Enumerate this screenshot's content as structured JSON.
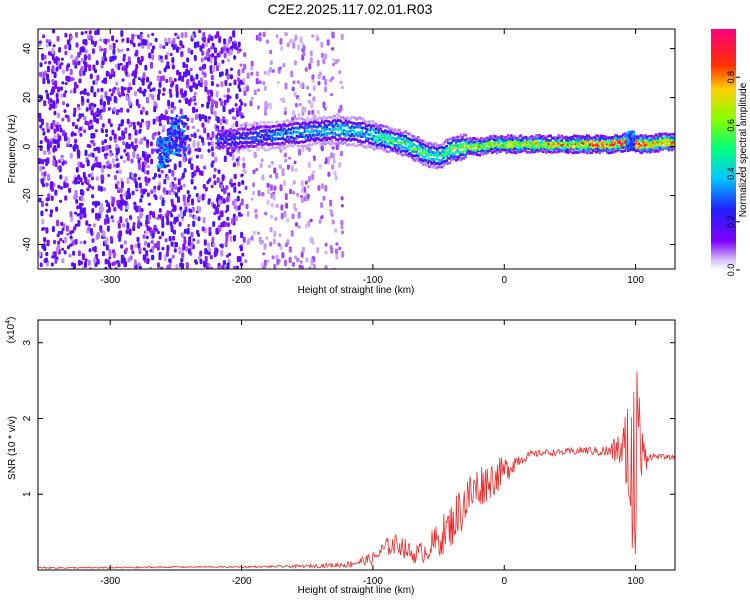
{
  "title": "C2E2.2025.117.02.01.R03",
  "chart_data": [
    {
      "type": "heatmap",
      "xlabel": "Height of straight line (km)",
      "ylabel": "Frequency (Hz)",
      "xlim": [
        -355,
        130
      ],
      "ylim": [
        -50,
        48
      ],
      "xticks": [
        -300,
        -200,
        -100,
        0,
        100
      ],
      "yticks": [
        -40,
        -20,
        0,
        20,
        40
      ],
      "colorbar": {
        "label": "Normalized spectral amplitude",
        "range": [
          0,
          1
        ],
        "ticks": [
          "0.0",
          "0.2",
          "0.4",
          "0.6",
          "0.8"
        ],
        "tick_values": [
          0,
          0.2,
          0.4,
          0.6,
          0.8
        ],
        "colormap": "rainbow (white-violet-blue-cyan-green-yellow-red-magenta)"
      },
      "ridge": {
        "description": "main spectral ridge frequency (Hz) vs height (km)",
        "x": [
          -210,
          -190,
          -170,
          -150,
          -130,
          -110,
          -90,
          -75,
          -60,
          -50,
          -40,
          -30,
          -20,
          -10,
          0,
          20,
          40,
          60,
          80,
          95,
          100,
          110,
          120,
          130
        ],
        "y": [
          3,
          4,
          5,
          6,
          7,
          6,
          3,
          1,
          -3,
          -4,
          -1,
          0,
          0,
          1,
          1,
          1,
          1,
          1,
          1,
          2,
          1,
          1,
          2,
          2
        ],
        "amplitude": [
          0.3,
          0.35,
          0.4,
          0.45,
          0.5,
          0.5,
          0.5,
          0.55,
          0.5,
          0.5,
          0.6,
          0.65,
          0.7,
          0.7,
          0.7,
          0.75,
          0.75,
          0.8,
          0.85,
          0.9,
          0.9,
          0.85,
          0.85,
          0.85
        ]
      },
      "noise_region_x": [
        -355,
        -130
      ]
    },
    {
      "type": "line",
      "xlabel": "Height of straight line (km)",
      "ylabel": "SNR (10 * v/v)",
      "multiplier": "(x10⁴)",
      "multiplier_base": "(x10",
      "multiplier_exp": "4",
      "xlim": [
        -355,
        130
      ],
      "ylim": [
        0,
        3.3
      ],
      "xticks": [
        -300,
        -200,
        -100,
        0,
        100
      ],
      "yticks": [
        1,
        2,
        3
      ],
      "color": "#e8302f",
      "series": [
        {
          "x": [
            -355,
            -300,
            -250,
            -200,
            -150,
            -120,
            -100,
            -90,
            -80,
            -70,
            -60,
            -50,
            -40,
            -30,
            -20,
            -10,
            0,
            10,
            20,
            30,
            40,
            50,
            60,
            70,
            80,
            90,
            95,
            100,
            105,
            110,
            120,
            130
          ],
          "y": [
            0.03,
            0.03,
            0.04,
            0.04,
            0.05,
            0.07,
            0.15,
            0.3,
            0.35,
            0.2,
            0.25,
            0.4,
            0.6,
            0.9,
            1.1,
            1.2,
            1.3,
            1.45,
            1.52,
            1.55,
            1.55,
            1.56,
            1.58,
            1.57,
            1.56,
            1.6,
            1.5,
            1.4,
            1.5,
            1.5,
            1.5,
            1.48
          ],
          "noise": [
            0.01,
            0.01,
            0.01,
            0.01,
            0.02,
            0.04,
            0.08,
            0.12,
            0.15,
            0.12,
            0.15,
            0.25,
            0.3,
            0.35,
            0.3,
            0.25,
            0.2,
            0.1,
            0.05,
            0.04,
            0.04,
            0.05,
            0.05,
            0.06,
            0.1,
            0.3,
            0.8,
            1.6,
            0.4,
            0.05,
            0.03,
            0.03
          ]
        }
      ]
    }
  ]
}
